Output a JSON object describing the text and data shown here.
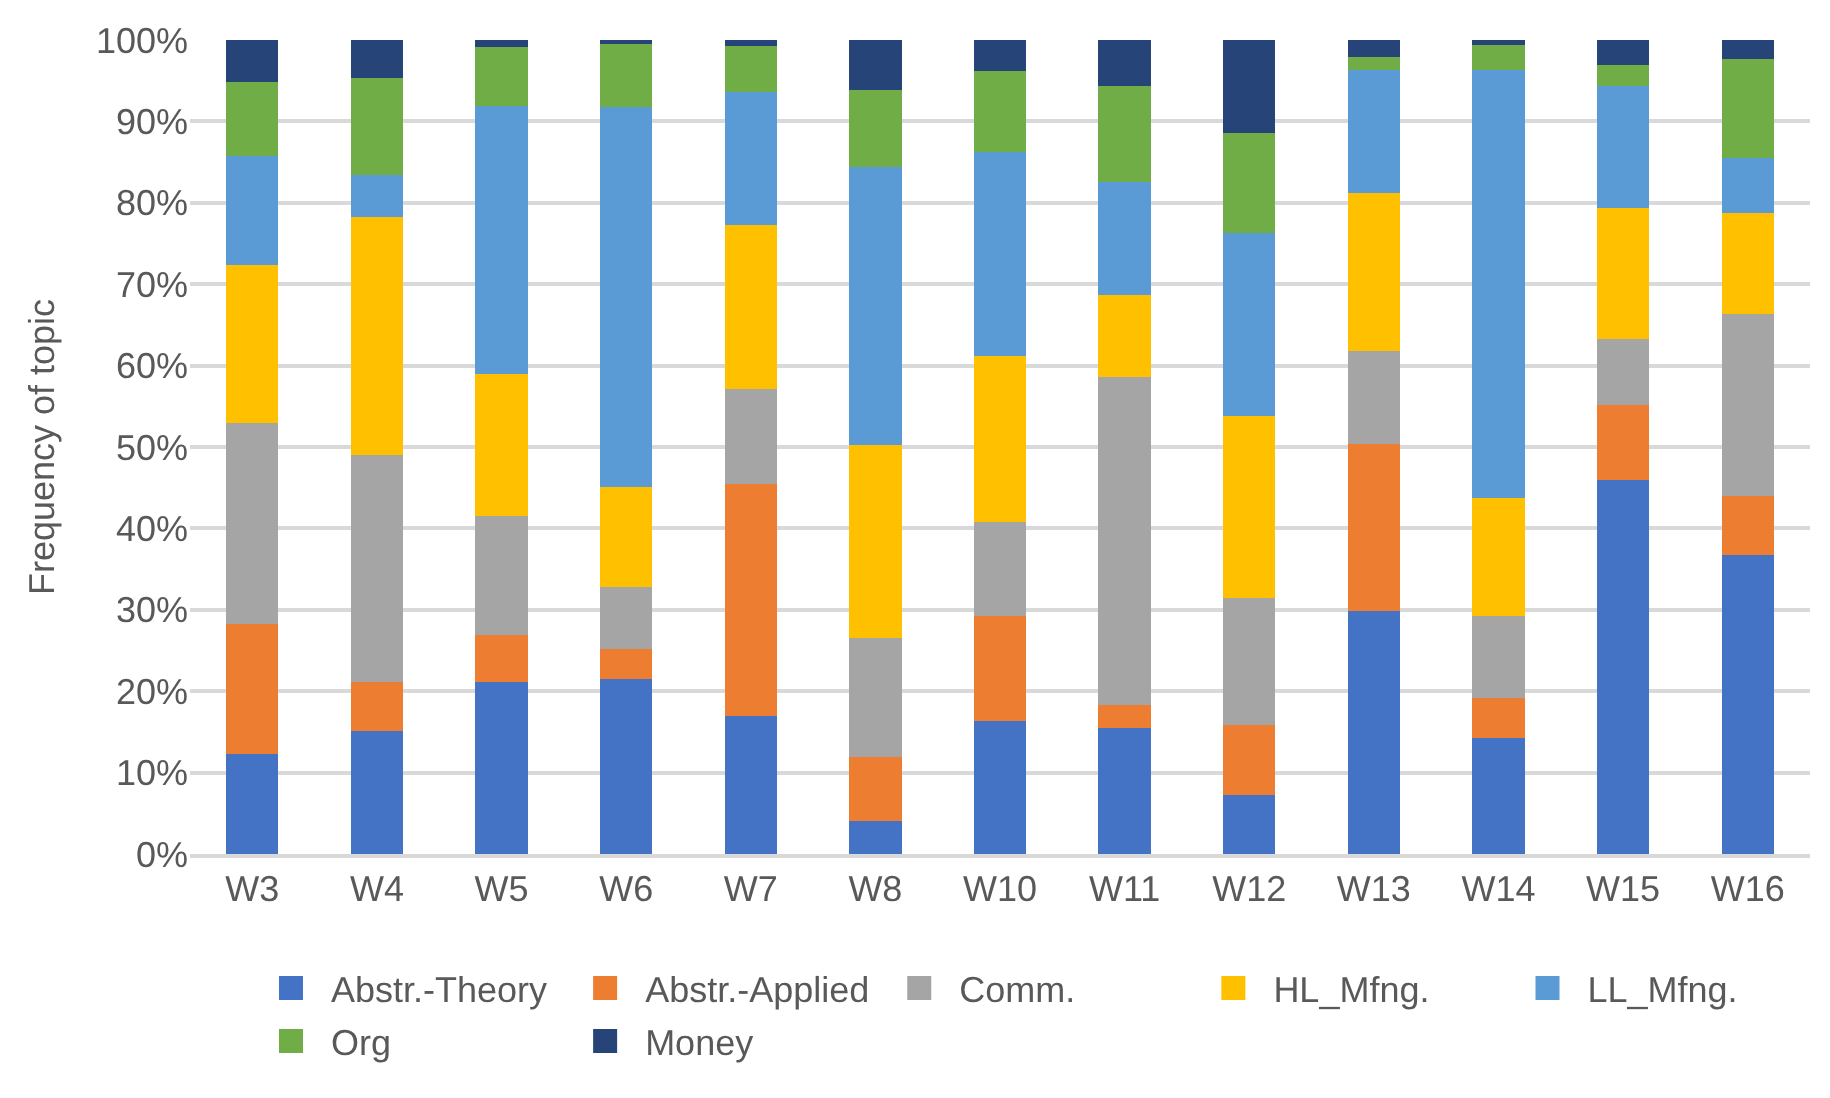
{
  "chart_data": {
    "type": "bar",
    "stacked": true,
    "ylabel": "Frequency of topic",
    "categories": [
      "W3",
      "W4",
      "W5",
      "W6",
      "W7",
      "W8",
      "W10",
      "W11",
      "W12",
      "W13",
      "W14",
      "W15",
      "W16"
    ],
    "series": [
      {
        "name": "Abstr.-Theory",
        "color": "#4472c4",
        "values": [
          12.3,
          15.1,
          21.1,
          21.5,
          16.9,
          4.1,
          16.4,
          15.5,
          7.3,
          29.9,
          14.2,
          46.0,
          36.7
        ]
      },
      {
        "name": "Abstr.-Applied",
        "color": "#ed7d31",
        "values": [
          15.9,
          6.0,
          5.8,
          3.7,
          28.6,
          7.8,
          12.9,
          2.8,
          8.5,
          20.5,
          5.0,
          9.1,
          7.3
        ]
      },
      {
        "name": "Comm.",
        "color": "#a5a5a5",
        "values": [
          24.8,
          27.9,
          14.6,
          7.6,
          11.6,
          14.6,
          11.5,
          40.3,
          15.6,
          11.4,
          10.1,
          8.2,
          22.3
        ]
      },
      {
        "name": "HL_Mfng.",
        "color": "#ffc000",
        "values": [
          19.3,
          29.2,
          17.5,
          12.3,
          20.2,
          23.7,
          20.4,
          10.1,
          22.4,
          19.4,
          14.4,
          16.1,
          12.4
        ]
      },
      {
        "name": "LL_Mfng.",
        "color": "#5b9bd5",
        "values": [
          13.4,
          5.2,
          32.9,
          46.7,
          16.3,
          34.2,
          25.0,
          13.8,
          22.5,
          15.1,
          52.6,
          15.0,
          6.8
        ]
      },
      {
        "name": "Org",
        "color": "#70ad47",
        "values": [
          9.1,
          11.9,
          7.2,
          7.8,
          5.7,
          9.4,
          10.0,
          11.8,
          12.3,
          1.6,
          3.1,
          2.5,
          12.2
        ]
      },
      {
        "name": "Money",
        "color": "#264478",
        "values": [
          5.2,
          4.7,
          0.9,
          0.4,
          0.7,
          6.2,
          3.8,
          5.7,
          11.4,
          2.1,
          0.6,
          3.1,
          2.3
        ]
      }
    ],
    "ylim": [
      0,
      100
    ],
    "yticks": [
      {
        "value": 0,
        "label": "0%"
      },
      {
        "value": 10,
        "label": "10%"
      },
      {
        "value": 20,
        "label": "20%"
      },
      {
        "value": 30,
        "label": "30%"
      },
      {
        "value": 40,
        "label": "40%"
      },
      {
        "value": 50,
        "label": "50%"
      },
      {
        "value": 60,
        "label": "60%"
      },
      {
        "value": 70,
        "label": "70%"
      },
      {
        "value": 80,
        "label": "80%"
      },
      {
        "value": 90,
        "label": "90%"
      },
      {
        "value": 100,
        "label": "100%"
      }
    ],
    "grid": "y",
    "legend": "bottom"
  }
}
